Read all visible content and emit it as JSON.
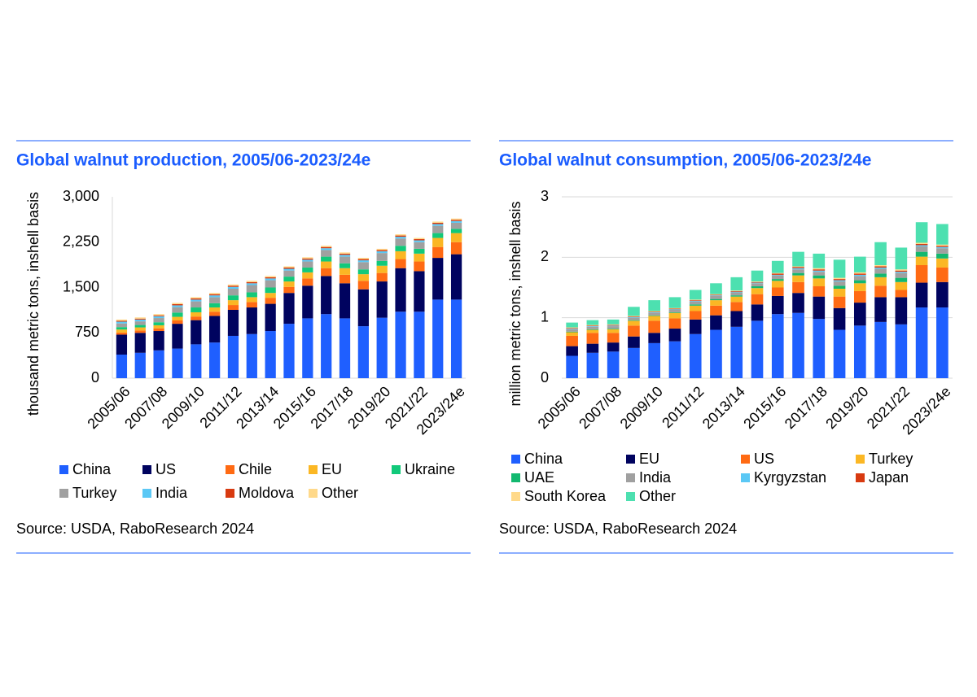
{
  "chart_data": [
    {
      "type": "bar",
      "stacked": true,
      "title": "Global walnut production, 2005/06-2023/24e",
      "y_label": "thousand metric tons, inshell basis",
      "source": "Source: USDA, RaboResearch 2024",
      "grid": false,
      "categories": [
        "2005/06",
        null,
        "2007/08",
        null,
        "2009/10",
        null,
        "2011/12",
        null,
        "2013/14",
        null,
        "2015/16",
        null,
        "2017/18",
        null,
        "2019/20",
        null,
        "2021/22",
        null,
        "2023/24e"
      ],
      "ylim": [
        0,
        3000
      ],
      "yticks": [
        0,
        750,
        {
          "value": 1500,
          "label": "1,500"
        },
        {
          "value": 2250,
          "label": "2,250"
        },
        {
          "value": 3000,
          "label": "3,000"
        }
      ],
      "series": [
        {
          "name": "China",
          "color": "#1f5fff",
          "values": [
            390,
            420,
            460,
            490,
            560,
            590,
            700,
            730,
            780,
            900,
            990,
            1060,
            990,
            860,
            1000,
            1100,
            1100,
            1300,
            1300
          ]
        },
        {
          "name": "US",
          "color": "#00035f",
          "values": [
            330,
            330,
            320,
            410,
            400,
            440,
            430,
            440,
            450,
            510,
            540,
            630,
            580,
            610,
            600,
            720,
            670,
            690,
            750
          ]
        },
        {
          "name": "Chile",
          "color": "#ff6a13",
          "values": [
            35,
            40,
            45,
            55,
            60,
            70,
            80,
            90,
            100,
            100,
            120,
            130,
            140,
            140,
            140,
            150,
            160,
            180,
            200
          ]
        },
        {
          "name": "EU",
          "color": "#fbb724",
          "values": [
            50,
            50,
            50,
            60,
            70,
            70,
            80,
            80,
            80,
            90,
            100,
            110,
            110,
            110,
            120,
            130,
            130,
            150,
            150
          ]
        },
        {
          "name": "Ukraine",
          "color": "#12c97a",
          "values": [
            40,
            40,
            50,
            70,
            80,
            70,
            80,
            80,
            90,
            80,
            80,
            80,
            80,
            80,
            80,
            90,
            80,
            80,
            70
          ]
        },
        {
          "name": "Turkey",
          "color": "#a0a0a0",
          "values": [
            60,
            60,
            70,
            90,
            100,
            100,
            110,
            120,
            120,
            100,
            100,
            110,
            110,
            120,
            130,
            120,
            110,
            120,
            100
          ]
        },
        {
          "name": "India",
          "color": "#5bc8f5",
          "values": [
            30,
            30,
            30,
            30,
            30,
            30,
            30,
            30,
            30,
            30,
            30,
            30,
            30,
            30,
            30,
            30,
            30,
            30,
            30
          ]
        },
        {
          "name": "Moldova",
          "color": "#d83a10",
          "values": [
            15,
            15,
            15,
            20,
            20,
            20,
            20,
            20,
            20,
            20,
            20,
            20,
            20,
            20,
            20,
            20,
            20,
            20,
            20
          ]
        },
        {
          "name": "Other",
          "color": "#ffd98a",
          "values": [
            20,
            20,
            20,
            20,
            20,
            20,
            20,
            20,
            20,
            20,
            20,
            20,
            20,
            20,
            20,
            20,
            20,
            20,
            20
          ]
        }
      ]
    },
    {
      "type": "bar",
      "stacked": true,
      "title": "Global walnut consumption, 2005/06-2023/24e",
      "y_label": "million metric tons, inshell basis",
      "source": "Source: USDA, RaboResearch 2024",
      "grid": true,
      "categories": [
        "2005/06",
        null,
        "2007/08",
        null,
        "2009/10",
        null,
        "2011/12",
        null,
        "2013/14",
        null,
        "2015/16",
        null,
        "2017/18",
        null,
        "2019/20",
        null,
        "2021/22",
        null,
        "2023/24e"
      ],
      "ylim": [
        0,
        3
      ],
      "yticks": [
        0,
        1,
        2,
        3
      ],
      "series": [
        {
          "name": "China",
          "color": "#1f5fff",
          "values": [
            0.37,
            0.42,
            0.44,
            0.5,
            0.58,
            0.61,
            0.73,
            0.8,
            0.85,
            0.95,
            1.06,
            1.08,
            0.98,
            0.8,
            0.87,
            0.93,
            0.89,
            1.17,
            1.17
          ]
        },
        {
          "name": "EU",
          "color": "#00035f",
          "values": [
            0.16,
            0.15,
            0.15,
            0.19,
            0.17,
            0.21,
            0.24,
            0.24,
            0.26,
            0.27,
            0.3,
            0.33,
            0.37,
            0.36,
            0.38,
            0.41,
            0.45,
            0.41,
            0.42
          ]
        },
        {
          "name": "US",
          "color": "#ff6a13",
          "values": [
            0.17,
            0.18,
            0.16,
            0.18,
            0.2,
            0.17,
            0.14,
            0.16,
            0.15,
            0.17,
            0.14,
            0.18,
            0.17,
            0.19,
            0.19,
            0.19,
            0.12,
            0.29,
            0.24
          ]
        },
        {
          "name": "Turkey",
          "color": "#fbb724",
          "values": [
            0.06,
            0.05,
            0.06,
            0.08,
            0.08,
            0.09,
            0.09,
            0.09,
            0.09,
            0.1,
            0.11,
            0.11,
            0.13,
            0.13,
            0.13,
            0.14,
            0.13,
            0.14,
            0.15
          ]
        },
        {
          "name": "UAE",
          "color": "#12b86f",
          "values": [
            0.01,
            0.01,
            0.01,
            0.01,
            0.01,
            0.01,
            0.02,
            0.02,
            0.02,
            0.03,
            0.03,
            0.04,
            0.05,
            0.05,
            0.05,
            0.06,
            0.07,
            0.08,
            0.08
          ]
        },
        {
          "name": "India",
          "color": "#a0a0a0",
          "values": [
            0.04,
            0.04,
            0.04,
            0.04,
            0.04,
            0.04,
            0.05,
            0.05,
            0.05,
            0.05,
            0.06,
            0.06,
            0.06,
            0.07,
            0.07,
            0.08,
            0.08,
            0.09,
            0.09
          ]
        },
        {
          "name": "Kyrgyzstan",
          "color": "#5bc8f5",
          "values": [
            0.01,
            0.01,
            0.01,
            0.01,
            0.01,
            0.01,
            0.01,
            0.01,
            0.01,
            0.01,
            0.01,
            0.02,
            0.02,
            0.02,
            0.02,
            0.02,
            0.02,
            0.02,
            0.02
          ]
        },
        {
          "name": "Japan",
          "color": "#d83a10",
          "values": [
            0.01,
            0.01,
            0.01,
            0.01,
            0.01,
            0.01,
            0.01,
            0.01,
            0.01,
            0.01,
            0.02,
            0.02,
            0.02,
            0.02,
            0.02,
            0.02,
            0.02,
            0.02,
            0.02
          ]
        },
        {
          "name": "South Korea",
          "color": "#ffd98a",
          "values": [
            0.01,
            0.01,
            0.01,
            0.01,
            0.01,
            0.01,
            0.01,
            0.01,
            0.01,
            0.01,
            0.01,
            0.01,
            0.02,
            0.02,
            0.02,
            0.02,
            0.02,
            0.02,
            0.02
          ]
        },
        {
          "name": "Other",
          "color": "#4de0b0",
          "values": [
            0.08,
            0.08,
            0.08,
            0.15,
            0.18,
            0.18,
            0.16,
            0.18,
            0.22,
            0.18,
            0.2,
            0.24,
            0.24,
            0.3,
            0.26,
            0.38,
            0.36,
            0.34,
            0.34
          ]
        }
      ]
    }
  ]
}
